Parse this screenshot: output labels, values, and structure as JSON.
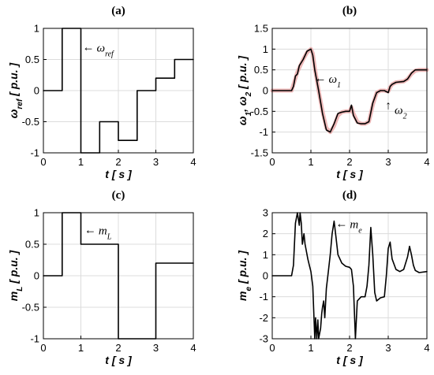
{
  "chart_data": [
    {
      "panel": "(a)",
      "type": "line",
      "xlabel": "t [ s ]",
      "ylabel": "ω_ref [ p.u. ]",
      "xlim": [
        0,
        4
      ],
      "ylim": [
        -1,
        1
      ],
      "xticks": [
        0,
        1,
        2,
        3,
        4
      ],
      "yticks": [
        -1,
        -0.5,
        0,
        0.5,
        1
      ],
      "xtick_labels": [
        "0",
        "1",
        "2",
        "3",
        "4"
      ],
      "ytick_labels": [
        "-1",
        "-0.5",
        "0",
        "0.5",
        "1"
      ],
      "grid": true,
      "annotations": [
        {
          "text": "ω_ref",
          "arrow": "←",
          "x": 1.0,
          "y": 0.7
        }
      ],
      "series": [
        {
          "color": "#000000",
          "x": [
            0,
            0.5,
            0.5,
            1,
            1,
            1.5,
            1.5,
            2,
            2,
            2.5,
            2.5,
            3,
            3,
            3.5,
            3.5,
            4
          ],
          "y": [
            0,
            0,
            1,
            1,
            -1,
            -1,
            -0.5,
            -0.5,
            -0.8,
            -0.8,
            0,
            0,
            0.2,
            0.2,
            0.5,
            0.5
          ]
        }
      ]
    },
    {
      "panel": "(b)",
      "type": "line",
      "xlabel": "t [ s ]",
      "ylabel": "ω_1, ω_2 [ p.u. ]",
      "xlim": [
        0,
        4
      ],
      "ylim": [
        -1.5,
        1.5
      ],
      "xticks": [
        0,
        1,
        2,
        3,
        4
      ],
      "yticks": [
        -1.5,
        -1,
        -0.5,
        0,
        0.5,
        1,
        1.5
      ],
      "xtick_labels": [
        "0",
        "1",
        "2",
        "3",
        "4"
      ],
      "ytick_labels": [
        "-1.5",
        "-1",
        "-0.5",
        "0",
        "0.5",
        "1",
        "1.5"
      ],
      "grid": true,
      "annotations": [
        {
          "text": "ω_1",
          "arrow": "←",
          "x": 1.05,
          "y": 0.3
        },
        {
          "text": "ω_2",
          "arrow": "↑",
          "x": 3.0,
          "y": -0.18,
          "color": "#cc0000"
        }
      ],
      "series": [
        {
          "name": "ω_2",
          "color": "#e8a0a0",
          "x": [
            0,
            0.5,
            0.55,
            0.6,
            0.65,
            0.7,
            0.8,
            0.9,
            1.0,
            1.05,
            1.1,
            1.2,
            1.3,
            1.4,
            1.5,
            1.6,
            1.7,
            1.8,
            1.9,
            2.0,
            2.05,
            2.1,
            2.2,
            2.3,
            2.4,
            2.5,
            2.6,
            2.7,
            2.8,
            2.9,
            3.0,
            3.05,
            3.1,
            3.2,
            3.4,
            3.5,
            3.6,
            3.7,
            3.8,
            4.0
          ],
          "y": [
            0,
            0,
            0.15,
            0.3,
            0.45,
            0.55,
            0.75,
            0.92,
            1.0,
            0.9,
            0.55,
            0.0,
            -0.5,
            -0.9,
            -1.0,
            -0.85,
            -0.6,
            -0.52,
            -0.5,
            -0.5,
            -0.4,
            -0.55,
            -0.75,
            -0.8,
            -0.8,
            -0.75,
            -0.35,
            -0.05,
            0.0,
            0.0,
            -0.02,
            0.08,
            0.15,
            0.2,
            0.22,
            0.28,
            0.4,
            0.48,
            0.5,
            0.5
          ]
        },
        {
          "name": "ω_1",
          "color": "#000000",
          "x": [
            0,
            0.5,
            0.55,
            0.6,
            0.65,
            0.7,
            0.8,
            0.9,
            1.0,
            1.05,
            1.1,
            1.2,
            1.3,
            1.4,
            1.5,
            1.6,
            1.7,
            1.8,
            1.9,
            2.0,
            2.05,
            2.1,
            2.2,
            2.3,
            2.4,
            2.5,
            2.6,
            2.7,
            2.8,
            2.9,
            3.0,
            3.05,
            3.1,
            3.2,
            3.4,
            3.5,
            3.6,
            3.7,
            3.8,
            4.0
          ],
          "y": [
            0,
            0,
            0.1,
            0.35,
            0.4,
            0.6,
            0.75,
            0.95,
            1.0,
            0.85,
            0.5,
            0.0,
            -0.55,
            -0.95,
            -1.0,
            -0.8,
            -0.55,
            -0.52,
            -0.5,
            -0.5,
            -0.35,
            -0.6,
            -0.78,
            -0.8,
            -0.8,
            -0.75,
            -0.3,
            -0.05,
            0.0,
            0.0,
            -0.05,
            0.1,
            0.15,
            0.2,
            0.22,
            0.28,
            0.42,
            0.5,
            0.5,
            0.5
          ]
        }
      ]
    },
    {
      "panel": "(c)",
      "type": "line",
      "xlabel": "t [ s ]",
      "ylabel": "m_L [ p.u. ]",
      "xlim": [
        0,
        4
      ],
      "ylim": [
        -1,
        1
      ],
      "xticks": [
        0,
        1,
        2,
        3,
        4
      ],
      "yticks": [
        -1,
        -0.5,
        0,
        0.5,
        1
      ],
      "xtick_labels": [
        "0",
        "1",
        "2",
        "3",
        "4"
      ],
      "ytick_labels": [
        "-1",
        "-0.5",
        "0",
        "0.5",
        "1"
      ],
      "grid": true,
      "annotations": [
        {
          "text": "m_L",
          "arrow": "←",
          "x": 1.05,
          "y": 0.73
        }
      ],
      "series": [
        {
          "color": "#000000",
          "x": [
            0,
            0.5,
            0.5,
            1,
            1,
            2,
            2,
            3,
            3,
            4
          ],
          "y": [
            0,
            0,
            1,
            1,
            0.5,
            0.5,
            -1,
            -1,
            0.2,
            0.2
          ]
        }
      ]
    },
    {
      "panel": "(d)",
      "type": "line",
      "xlabel": "t [ s ]",
      "ylabel": "m_e [ p.u. ]",
      "xlim": [
        0,
        4
      ],
      "ylim": [
        -3,
        3
      ],
      "xticks": [
        0,
        1,
        2,
        3,
        4
      ],
      "yticks": [
        -3,
        -2,
        -1,
        0,
        1,
        2,
        3
      ],
      "xtick_labels": [
        "0",
        "1",
        "2",
        "3",
        "4"
      ],
      "ytick_labels": [
        "-3",
        "-2",
        "-1",
        "0",
        "1",
        "2",
        "3"
      ],
      "grid": true,
      "annotations": [
        {
          "text": "m_e",
          "arrow": "←",
          "x": 1.6,
          "y": 2.5
        }
      ],
      "series": [
        {
          "color": "#000000",
          "x": [
            0,
            0.5,
            0.55,
            0.6,
            0.65,
            0.7,
            0.72,
            0.75,
            0.78,
            0.82,
            0.85,
            0.88,
            0.92,
            0.96,
            1.0,
            1.05,
            1.1,
            1.12,
            1.15,
            1.18,
            1.2,
            1.25,
            1.28,
            1.3,
            1.33,
            1.36,
            1.4,
            1.45,
            1.5,
            1.55,
            1.6,
            1.65,
            1.7,
            1.8,
            1.9,
            2.0,
            2.05,
            2.1,
            2.15,
            2.2,
            2.3,
            2.4,
            2.45,
            2.5,
            2.55,
            2.6,
            2.65,
            2.7,
            2.8,
            2.9,
            2.95,
            3.0,
            3.05,
            3.1,
            3.2,
            3.3,
            3.4,
            3.5,
            3.55,
            3.6,
            3.65,
            3.7,
            3.8,
            4.0
          ],
          "y": [
            0,
            0,
            0.5,
            2.5,
            3.0,
            2.4,
            3.0,
            2.5,
            1.5,
            2.0,
            1.5,
            1.2,
            0.8,
            0.5,
            0.2,
            -0.5,
            -3.0,
            -2.0,
            -3.0,
            -2.1,
            -3.0,
            -2.5,
            -1.8,
            -1.5,
            -1.2,
            -2.0,
            -0.6,
            0.2,
            1.0,
            2.0,
            2.6,
            1.8,
            1.0,
            0.6,
            0.45,
            0.4,
            0.3,
            -0.5,
            -3.0,
            -1.2,
            -1.0,
            -1.0,
            -0.5,
            0.5,
            2.3,
            1.0,
            -0.8,
            -1.2,
            -1.05,
            -1.0,
            0.0,
            1.3,
            1.6,
            0.8,
            0.3,
            0.2,
            0.3,
            0.9,
            1.4,
            1.0,
            0.5,
            0.25,
            0.15,
            0.2
          ]
        }
      ]
    }
  ]
}
